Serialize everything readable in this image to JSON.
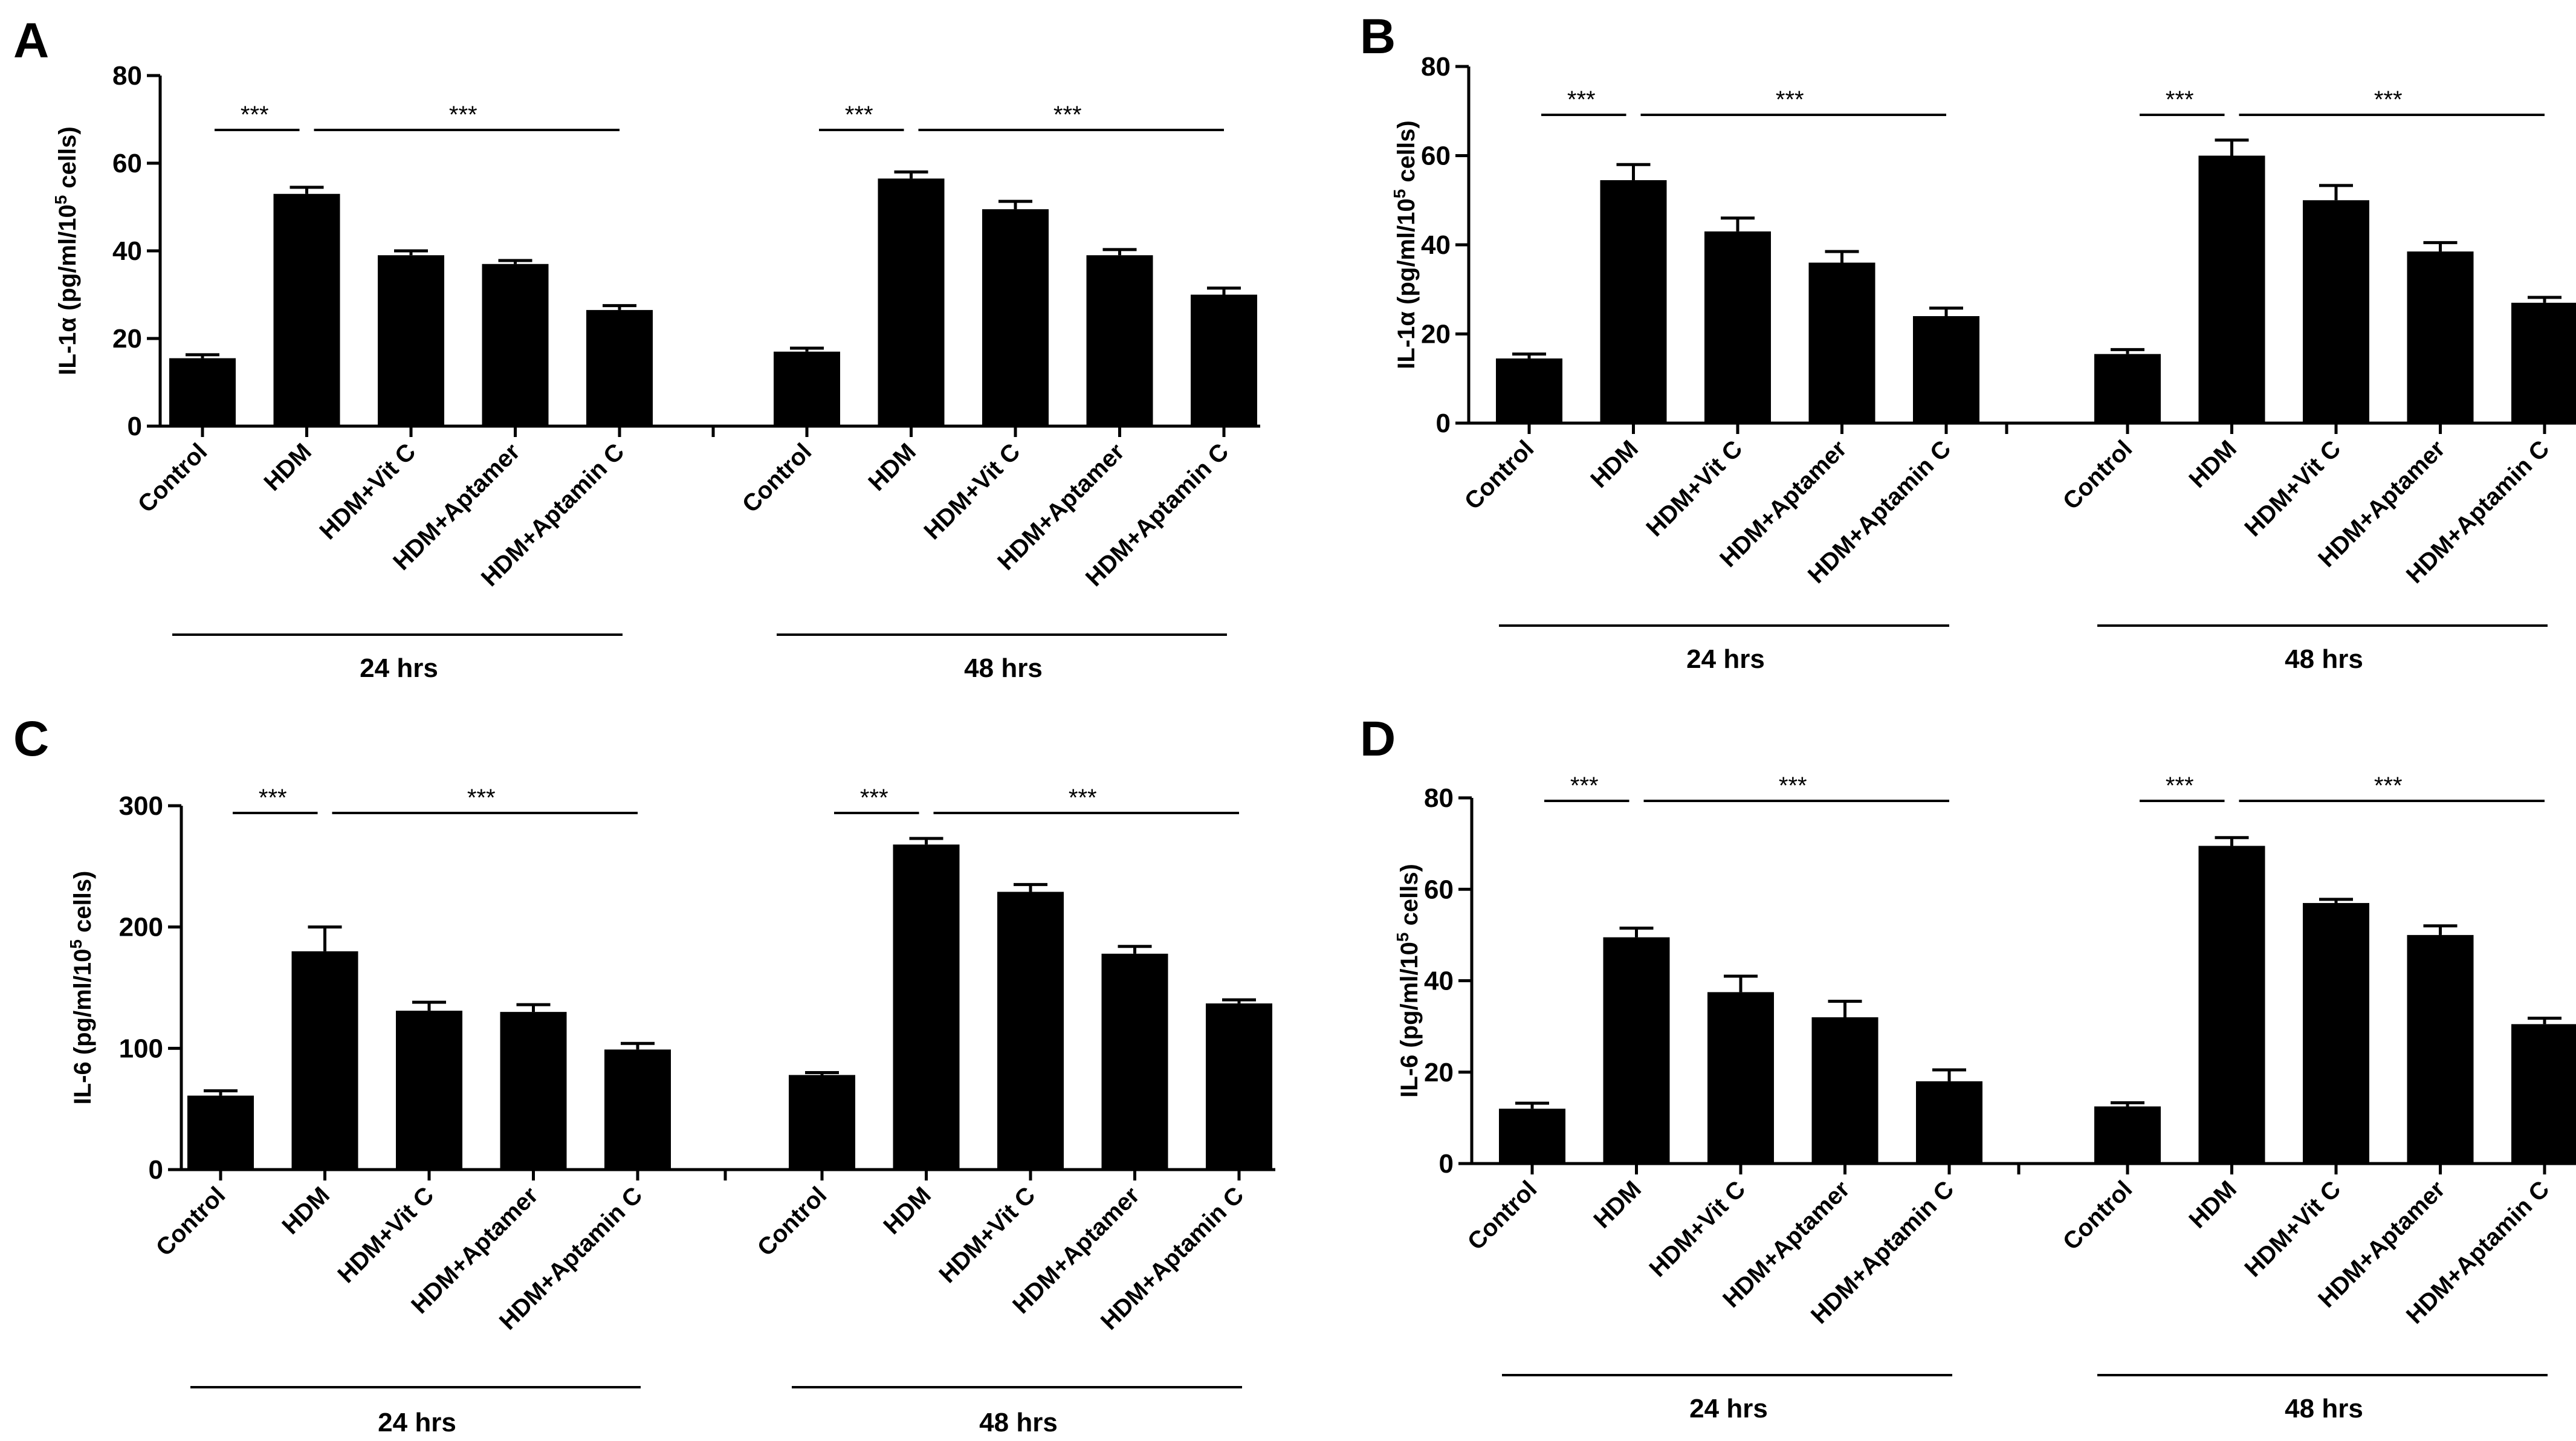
{
  "figure": {
    "time_groups": [
      "24 hrs",
      "48 hrs"
    ],
    "significance_mark": "***"
  },
  "chart_data": [
    {
      "panel": "A",
      "type": "bar",
      "ylabel": "IL-1α (pg/ml/10",
      "ylabel_sup": "5",
      "ylabel_tail": " cells)",
      "ylim": [
        0,
        80
      ],
      "yticks": [
        0,
        20,
        40,
        60,
        80
      ],
      "categories": [
        "Control",
        "HDM",
        "HDM+Vit C",
        "HDM+Aptamer",
        "HDM+Aptamin C"
      ],
      "groups": [
        {
          "label": "24 hrs",
          "values": [
            15.5,
            53,
            39,
            37,
            26.5
          ],
          "errors": [
            0.8,
            1.5,
            1.0,
            0.8,
            1.0
          ]
        },
        {
          "label": "48 hrs",
          "values": [
            17,
            56.5,
            49.5,
            39,
            30
          ],
          "errors": [
            0.8,
            1.5,
            1.8,
            1.3,
            1.5
          ]
        }
      ]
    },
    {
      "panel": "B",
      "type": "bar",
      "ylabel": "IL-1α (pg/ml/10",
      "ylabel_sup": "5",
      "ylabel_tail": " cells)",
      "ylim": [
        0,
        80
      ],
      "yticks": [
        0,
        20,
        40,
        60,
        80
      ],
      "categories": [
        "Control",
        "HDM",
        "HDM+Vit C",
        "HDM+Aptamer",
        "HDM+Aptamin C"
      ],
      "groups": [
        {
          "label": "24 hrs",
          "values": [
            14.5,
            54.5,
            43,
            36,
            24
          ],
          "errors": [
            1.0,
            3.5,
            3.0,
            2.5,
            1.8
          ]
        },
        {
          "label": "48 hrs",
          "values": [
            15.5,
            60,
            50,
            38.5,
            27
          ],
          "errors": [
            1.0,
            3.5,
            3.3,
            2.0,
            1.2
          ]
        }
      ]
    },
    {
      "panel": "C",
      "type": "bar",
      "ylabel": "IL-6 (pg/ml/10",
      "ylabel_sup": "5",
      "ylabel_tail": " cells)",
      "ylim": [
        0,
        300
      ],
      "yticks": [
        0,
        100,
        200,
        300
      ],
      "categories": [
        "Control",
        "HDM",
        "HDM+Vit C",
        "HDM+Aptamer",
        "HDM+Aptamin C"
      ],
      "groups": [
        {
          "label": "24 hrs",
          "values": [
            61,
            180,
            131,
            130,
            99
          ],
          "errors": [
            4,
            20,
            7,
            6,
            5
          ]
        },
        {
          "label": "48 hrs",
          "values": [
            78,
            268,
            229,
            178,
            137
          ],
          "errors": [
            2,
            5,
            6,
            6,
            3
          ]
        }
      ]
    },
    {
      "panel": "D",
      "type": "bar",
      "ylabel": "IL-6 (pg/ml/10",
      "ylabel_sup": "5",
      "ylabel_tail": " cells)",
      "ylim": [
        0,
        80
      ],
      "yticks": [
        0,
        20,
        40,
        60,
        80
      ],
      "categories": [
        "Control",
        "HDM",
        "HDM+Vit C",
        "HDM+Aptamer",
        "HDM+Aptamin C"
      ],
      "groups": [
        {
          "label": "24 hrs",
          "values": [
            12,
            49.5,
            37.5,
            32,
            18
          ],
          "errors": [
            1.2,
            2.0,
            3.5,
            3.5,
            2.5
          ]
        },
        {
          "label": "48 hrs",
          "values": [
            12.5,
            69.5,
            57,
            50,
            30.5
          ],
          "errors": [
            0.8,
            1.8,
            0.8,
            2.0,
            1.3
          ]
        }
      ]
    }
  ]
}
